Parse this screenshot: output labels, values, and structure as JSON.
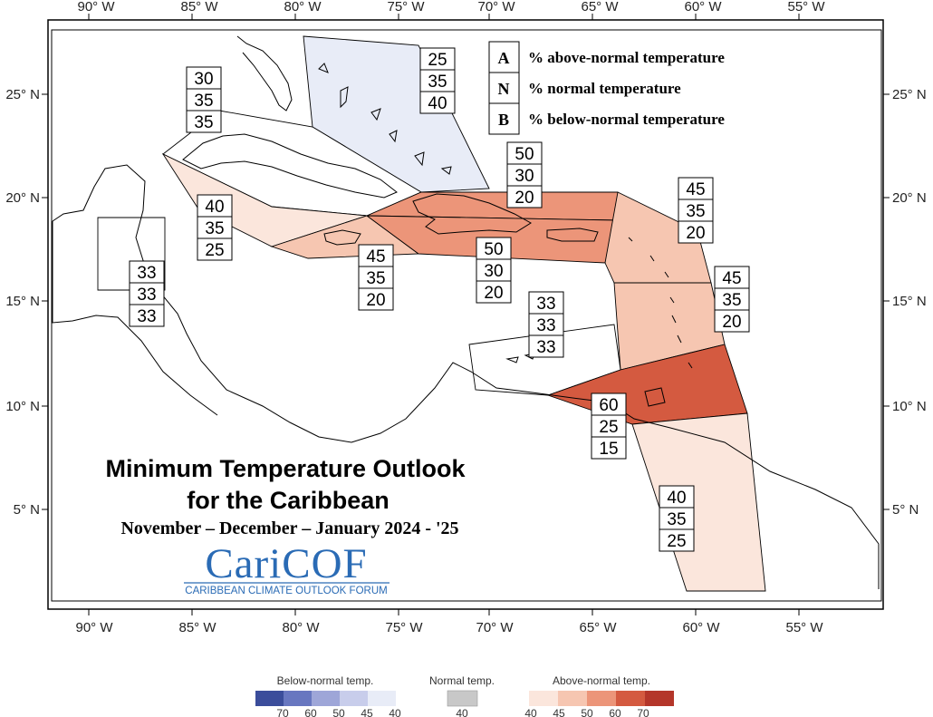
{
  "map": {
    "title_line1": "Minimum Temperature Outlook",
    "title_line2": "for the Caribbean",
    "period": "November – December – January 2024 - '25",
    "logo": {
      "name": "CariCOF",
      "subtitle": "CARIBBEAN CLIMATE OUTLOOK FORUM"
    },
    "frame_extent": {
      "west_lon": -91.5,
      "east_lon": -50.5,
      "south_lat": 0.5,
      "north_lat": 28.5
    },
    "longitude_labels": [
      "90° W",
      "85° W",
      "80° W",
      "75° W",
      "70° W",
      "65° W",
      "60° W",
      "55° W"
    ],
    "latitude_labels_left": [
      "25° N",
      "20° N",
      "15° N",
      "10° N",
      "5° N"
    ],
    "latitude_labels_right": [
      "25° N",
      "20° N",
      "15° N",
      "10° N",
      "5° N"
    ],
    "key": {
      "rows": [
        {
          "letter": "A",
          "desc": "% above-normal temperature"
        },
        {
          "letter": "N",
          "desc": "% normal temperature"
        },
        {
          "letter": "B",
          "desc": "% below-normal temperature"
        }
      ]
    },
    "zones": [
      {
        "region": "Bahamas",
        "A": "25",
        "N": "35",
        "B": "40",
        "color": "#e8ecf7"
      },
      {
        "region": "Cuba",
        "A": "30",
        "N": "35",
        "B": "35",
        "color": "#ffffff"
      },
      {
        "region": "Cayman Islands and western Cuba waters",
        "A": "40",
        "N": "35",
        "B": "25",
        "color": "#fbe6dc"
      },
      {
        "region": "Jamaica",
        "A": "45",
        "N": "35",
        "B": "20",
        "color": "#f6c6b1"
      },
      {
        "region": "Hispaniola north",
        "A": "50",
        "N": "30",
        "B": "20",
        "color": "#ec9579"
      },
      {
        "region": "Hispaniola and Puerto Rico south",
        "A": "50",
        "N": "30",
        "B": "20",
        "color": "#ec9579"
      },
      {
        "region": "Northern Leeward Islands",
        "A": "45",
        "N": "35",
        "B": "20",
        "color": "#f6c6b1"
      },
      {
        "region": "Windward Islands",
        "A": "45",
        "N": "35",
        "B": "20",
        "color": "#f6c6b1"
      },
      {
        "region": "Belize",
        "A": "33",
        "N": "33",
        "B": "33",
        "color": "#ffffff"
      },
      {
        "region": "ABC Islands",
        "A": "33",
        "N": "33",
        "B": "33",
        "color": "#ffffff"
      },
      {
        "region": "Trinidad, Tobago and Barbados",
        "A": "60",
        "N": "25",
        "B": "15",
        "color": "#d45a40"
      },
      {
        "region": "Guianas",
        "A": "40",
        "N": "35",
        "B": "25",
        "color": "#fbe6dc"
      }
    ],
    "color_scale": {
      "below": {
        "label": "Below-normal temp.",
        "ticks": [
          "70",
          "60",
          "50",
          "45",
          "40"
        ],
        "colors": [
          "#3b4d9b",
          "#6877c0",
          "#9ea6d8",
          "#c8cdeb",
          "#e8ecf7"
        ]
      },
      "normal": {
        "label": "Normal temp.",
        "ticks": [
          "40"
        ],
        "colors": [
          "#c8c8c8"
        ]
      },
      "above": {
        "label": "Above-normal temp.",
        "ticks": [
          "40",
          "45",
          "50",
          "60",
          "70"
        ],
        "colors": [
          "#fbe6dc",
          "#f6c6b1",
          "#ec9579",
          "#d45a40",
          "#b4362a"
        ]
      }
    }
  }
}
